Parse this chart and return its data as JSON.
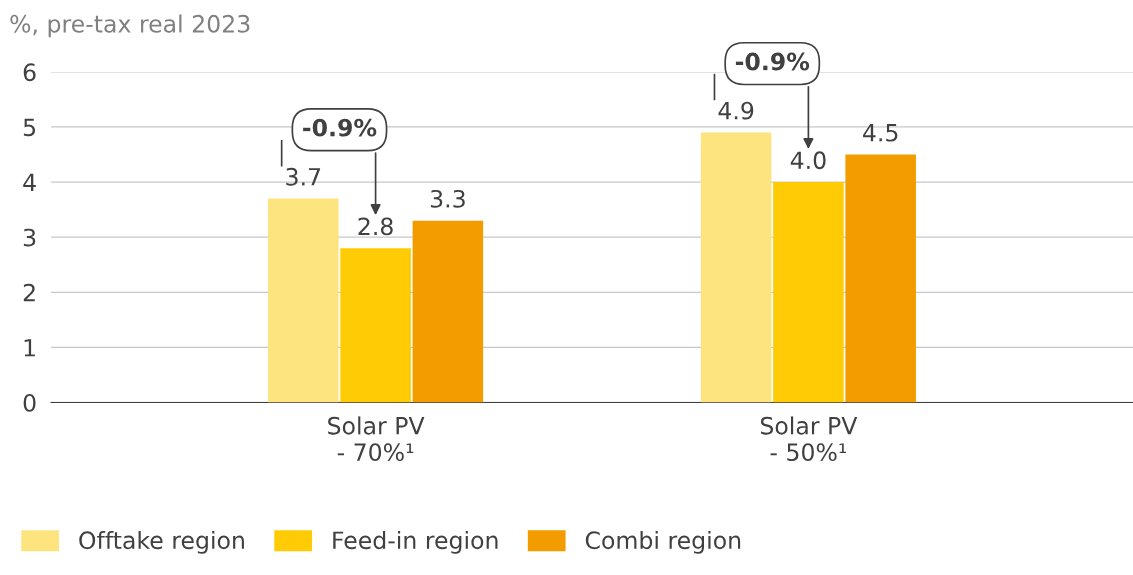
{
  "chart_data": {
    "type": "bar",
    "ylabel": "%, pre-tax real 2023",
    "categories": [
      "Solar PV\n- 70%¹",
      "Solar PV\n- 50%¹"
    ],
    "series": [
      {
        "name": "Offtake region",
        "color": "#fde47f",
        "values": [
          3.7,
          4.9
        ],
        "value_labels": [
          "3.7",
          "4.9"
        ]
      },
      {
        "name": "Feed-in region",
        "color": "#ffcb05",
        "values": [
          2.8,
          4.0
        ],
        "value_labels": [
          "2.8",
          "4.0"
        ]
      },
      {
        "name": "Combi region",
        "color": "#f39c00",
        "values": [
          3.3,
          4.5
        ],
        "value_labels": [
          "3.3",
          "4.5"
        ]
      }
    ],
    "ylim": [
      0,
      6
    ],
    "yticks": [
      0,
      1,
      2,
      3,
      4,
      5,
      6
    ],
    "grid": "y",
    "legend": "bottom",
    "annotations": [
      "-0.9%",
      "-0.9%"
    ]
  }
}
